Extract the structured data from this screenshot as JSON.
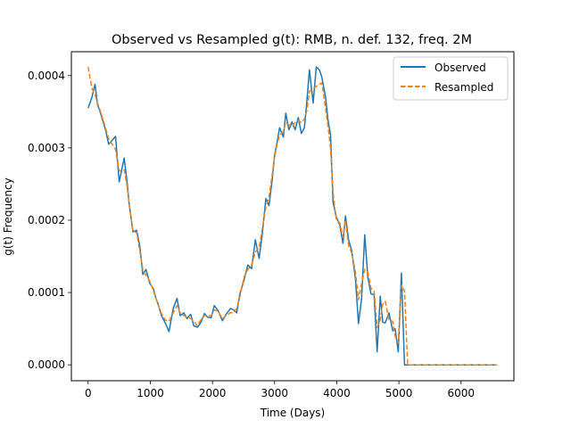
{
  "chart_data": {
    "type": "line",
    "title": "Observed vs Resampled g(t): RMB, n. def. 132, freq. 2M",
    "xlabel": "Time (Days)",
    "ylabel": "g(t) Frequency",
    "xlim": [
      -270,
      6850
    ],
    "ylim": [
      -2.2e-05,
      0.000433
    ],
    "xticks": [
      0,
      1000,
      2000,
      3000,
      4000,
      5000,
      6000
    ],
    "xtick_labels": [
      "0",
      "1000",
      "2000",
      "3000",
      "4000",
      "5000",
      "6000"
    ],
    "yticks": [
      0,
      0.0001,
      0.0002,
      0.0003,
      0.0004
    ],
    "ytick_labels": [
      "0.0000",
      "0.0001",
      "0.0002",
      "0.0003",
      "0.0004"
    ],
    "grid": false,
    "legend_position": "top-right",
    "series": [
      {
        "name": "Observed",
        "color": "#1f77b4",
        "style": "solid",
        "x": [
          0,
          60,
          110,
          150,
          200,
          280,
          330,
          380,
          440,
          500,
          580,
          630,
          660,
          720,
          780,
          830,
          880,
          930,
          990,
          1050,
          1090,
          1130,
          1180,
          1240,
          1300,
          1370,
          1430,
          1480,
          1540,
          1590,
          1650,
          1700,
          1760,
          1810,
          1870,
          1920,
          1980,
          2030,
          2090,
          2160,
          2220,
          2290,
          2340,
          2390,
          2440,
          2510,
          2570,
          2630,
          2690,
          2750,
          2800,
          2860,
          2910,
          2960,
          3000,
          3040,
          3080,
          3140,
          3180,
          3230,
          3280,
          3330,
          3380,
          3430,
          3480,
          3520,
          3560,
          3620,
          3670,
          3720,
          3760,
          3820,
          3860,
          3900,
          3940,
          3990,
          4050,
          4100,
          4140,
          4190,
          4240,
          4300,
          4350,
          4400,
          4450,
          4500,
          4550,
          4600,
          4650,
          4700,
          4740,
          4780,
          4840,
          4900,
          4940,
          4990,
          5040,
          5090,
          5140,
          5190,
          5240,
          5300,
          5360,
          5400,
          5440,
          5500,
          5560,
          5600,
          5700,
          5800,
          5900,
          6000,
          6100,
          6200,
          6300,
          6400,
          6500,
          6580
        ],
        "y": [
          0.000355,
          0.00037,
          0.000388,
          0.00036,
          0.000348,
          0.000325,
          0.000305,
          0.00031,
          0.000316,
          0.000253,
          0.000286,
          0.00025,
          0.000222,
          0.000184,
          0.000186,
          0.000165,
          0.000125,
          0.000132,
          0.000113,
          0.000105,
          9.2e-05,
          8.3e-05,
          6.8e-05,
          5.8e-05,
          4.6e-05,
          7.8e-05,
          9.2e-05,
          6.8e-05,
          7.2e-05,
          6.4e-05,
          7e-05,
          5.4e-05,
          5.2e-05,
          5.8e-05,
          7.1e-05,
          6.6e-05,
          6.5e-05,
          8.2e-05,
          7.5e-05,
          6.1e-05,
          7e-05,
          7.8e-05,
          7.6e-05,
          7.2e-05,
          9.8e-05,
          0.000118,
          0.000138,
          0.000133,
          0.000173,
          0.000147,
          0.00018,
          0.00023,
          0.00022,
          0.000255,
          0.00029,
          0.000308,
          0.000328,
          0.000315,
          0.000348,
          0.000325,
          0.000336,
          0.000325,
          0.000342,
          0.00032,
          0.000328,
          0.000365,
          0.000408,
          0.000362,
          0.000412,
          0.000408,
          0.000398,
          0.00037,
          0.000338,
          0.000318,
          0.000225,
          0.000205,
          0.000193,
          0.000168,
          0.000206,
          0.000173,
          0.000158,
          0.000119,
          5.7e-05,
          9.2e-05,
          0.00018,
          0.000121,
          9.8e-05,
          9.7e-05,
          1.8e-05,
          9.5e-05,
          5.9e-05,
          5.8e-05,
          7.2e-05,
          4.7e-05,
          5e-05,
          1.8e-05,
          0.000127,
          0.0,
          0.0,
          0.0,
          0.0,
          0.0,
          0.0,
          0.0,
          0.0,
          0.0,
          0.0,
          0.0,
          0.0,
          0.0,
          0.0,
          0.0,
          0.0,
          0.0,
          0.0,
          0.0,
          0.0,
          0.0
        ]
      },
      {
        "name": "Resampled",
        "color": "#ff7f0e",
        "style": "dashed",
        "x": [
          0,
          60,
          110,
          150,
          200,
          280,
          330,
          380,
          440,
          500,
          580,
          630,
          660,
          720,
          780,
          830,
          880,
          930,
          990,
          1050,
          1090,
          1130,
          1180,
          1240,
          1300,
          1370,
          1430,
          1480,
          1540,
          1590,
          1650,
          1700,
          1760,
          1810,
          1870,
          1920,
          1980,
          2030,
          2090,
          2160,
          2220,
          2290,
          2340,
          2390,
          2440,
          2510,
          2570,
          2630,
          2690,
          2750,
          2800,
          2860,
          2910,
          2960,
          3000,
          3040,
          3080,
          3140,
          3180,
          3230,
          3280,
          3330,
          3380,
          3430,
          3480,
          3520,
          3560,
          3620,
          3670,
          3720,
          3760,
          3820,
          3860,
          3900,
          3940,
          3990,
          4050,
          4100,
          4140,
          4190,
          4240,
          4300,
          4350,
          4400,
          4450,
          4500,
          4550,
          4600,
          4650,
          4700,
          4740,
          4780,
          4840,
          4900,
          4940,
          4990,
          5040,
          5090,
          5140,
          5190,
          5240,
          5300,
          5360,
          5400,
          5440,
          5500,
          5560,
          5600,
          5700,
          5800,
          5900,
          6000,
          6100,
          6200,
          6300,
          6400,
          6500,
          6580
        ],
        "y": [
          0.000412,
          0.000382,
          0.000374,
          0.000362,
          0.00035,
          0.000328,
          0.000312,
          0.000306,
          0.000298,
          0.000268,
          0.00027,
          0.000245,
          0.000222,
          0.000185,
          0.000183,
          0.000158,
          0.000132,
          0.000124,
          0.000116,
          0.000102,
          9.2e-05,
          8.2e-05,
          7.1e-05,
          6.2e-05,
          6e-05,
          7.2e-05,
          8.2e-05,
          7.2e-05,
          6.8e-05,
          6.6e-05,
          6.4e-05,
          6e-05,
          5.4e-05,
          6.2e-05,
          6.8e-05,
          6.8e-05,
          6.8e-05,
          7.6e-05,
          7.4e-05,
          6.4e-05,
          6.8e-05,
          7.2e-05,
          7.2e-05,
          7.8e-05,
          9.4e-05,
          0.000122,
          0.000132,
          0.000138,
          0.000156,
          0.000162,
          0.000188,
          0.000218,
          0.000232,
          0.000262,
          0.000288,
          0.000305,
          0.000318,
          0.000322,
          0.000335,
          0.000332,
          0.00033,
          0.000335,
          0.000338,
          0.000335,
          0.00034,
          0.000352,
          0.000378,
          0.000382,
          0.000385,
          0.000388,
          0.00039,
          0.000355,
          0.00033,
          0.0003,
          0.000238,
          0.000202,
          0.000196,
          0.000176,
          0.0002,
          0.000165,
          0.000155,
          0.000128,
          9e-05,
          0.000112,
          0.000132,
          0.000128,
          0.000106,
          0.000102,
          5.2e-05,
          6.2e-05,
          8.4e-05,
          8.8e-05,
          6.2e-05,
          6e-05,
          4e-05,
          3e-05,
          0.00011,
          0.000102,
          0.0,
          0.0,
          0.0,
          0.0,
          0.0,
          0.0,
          0.0,
          0.0,
          0.0,
          0.0,
          0.0,
          0.0,
          0.0,
          0.0,
          0.0,
          0.0,
          0.0,
          0.0,
          0.0,
          0.0
        ]
      }
    ]
  }
}
